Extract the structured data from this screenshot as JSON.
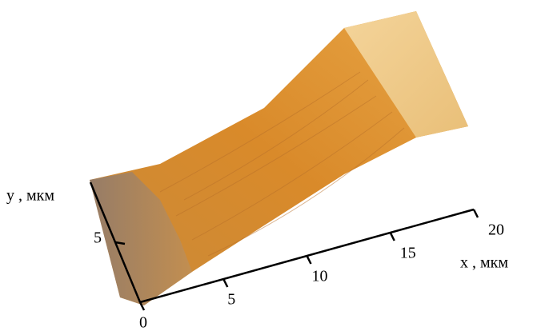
{
  "chart_data": {
    "type": "surface",
    "x_label": "x , мкм",
    "y_label": "y , мкм",
    "xlim": [
      0,
      20
    ],
    "xticks": [
      0,
      5,
      10,
      15,
      20
    ],
    "ylim": [
      0,
      10
    ],
    "yticks": [
      5
    ]
  }
}
